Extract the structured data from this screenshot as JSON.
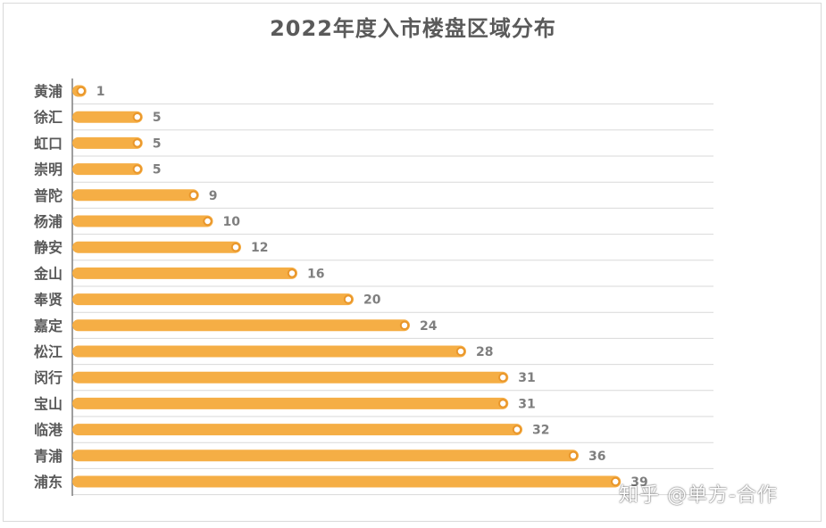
{
  "chart_data": {
    "type": "bar",
    "orientation": "horizontal",
    "title": "2022年度入市楼盘区域分布",
    "categories": [
      "黄浦",
      "徐汇",
      "虹口",
      "崇明",
      "普陀",
      "杨浦",
      "静安",
      "金山",
      "奉贤",
      "嘉定",
      "松江",
      "闵行",
      "宝山",
      "临港",
      "青浦",
      "浦东"
    ],
    "values": [
      1,
      5,
      5,
      5,
      9,
      10,
      12,
      16,
      20,
      24,
      28,
      31,
      31,
      32,
      36,
      39
    ],
    "xlim": [
      0,
      42
    ],
    "xlabel": "",
    "ylabel": "",
    "grid": true,
    "legend": "none",
    "colors": {
      "bar": "#f5ae45",
      "end_marker_fill": "#ffffff",
      "end_marker_stroke": "#e9962a",
      "label": "#7f7f7f",
      "category_label": "#595959",
      "gridline": "#d9d9d9",
      "axis": "#7f7f7f"
    }
  },
  "watermark": "知乎 @单方-合作"
}
